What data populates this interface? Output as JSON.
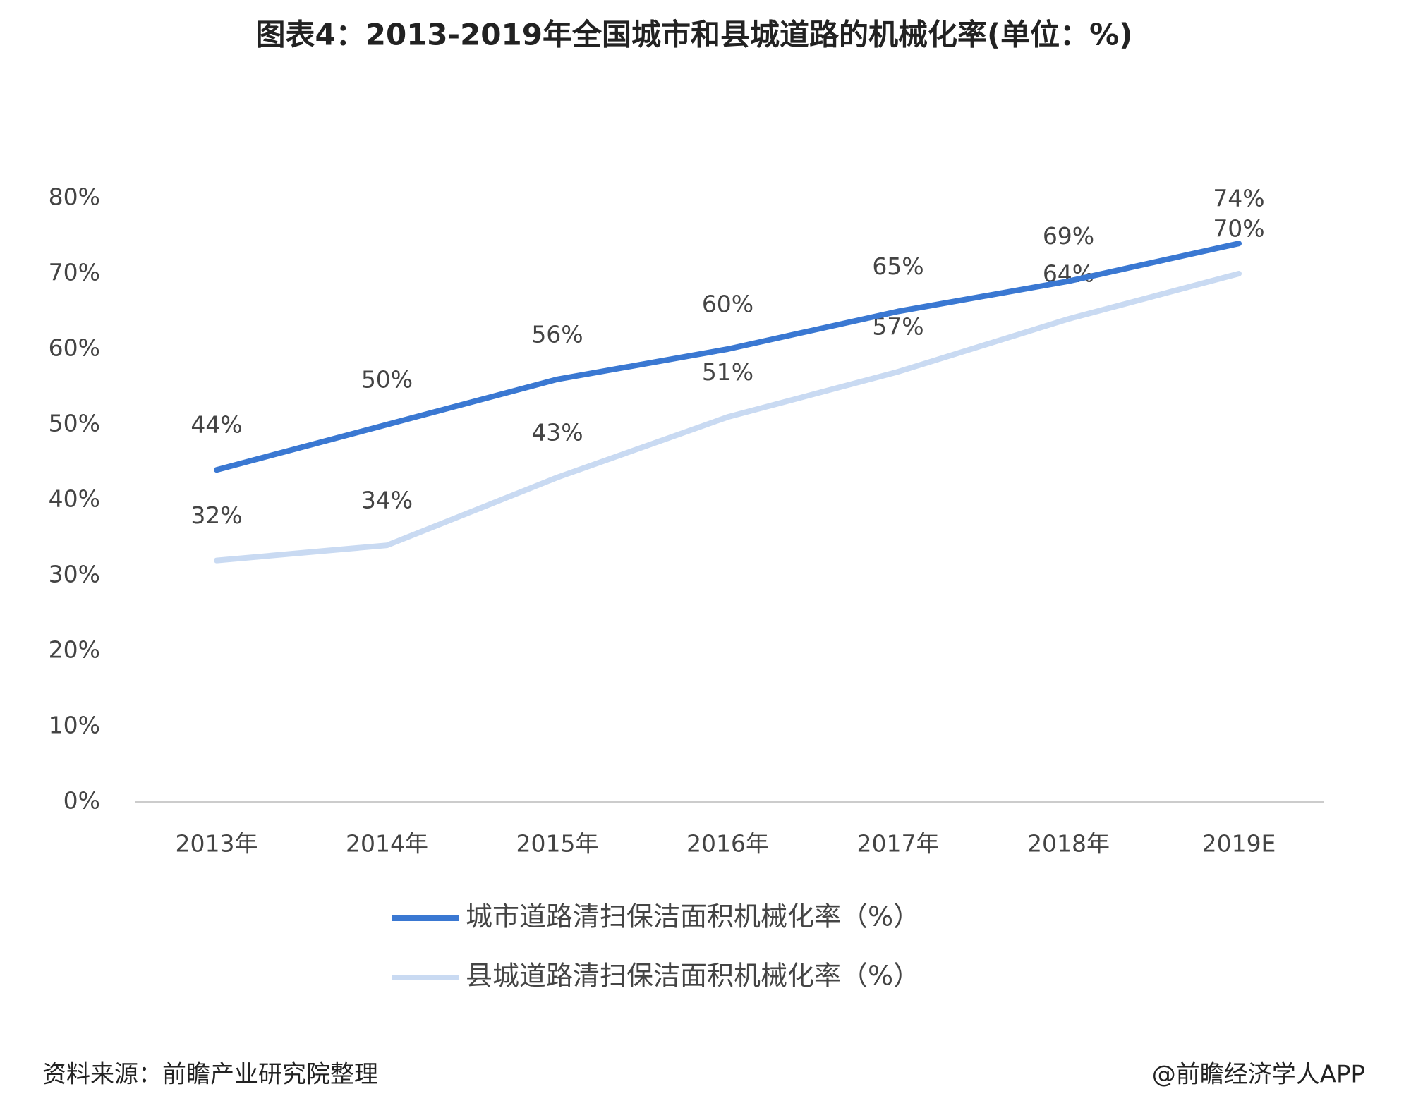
{
  "chart_data": {
    "type": "line",
    "title": "图表4：2013-2019年全国城市和县城道路的机械化率(单位：%)",
    "categories": [
      "2013年",
      "2014年",
      "2015年",
      "2016年",
      "2017年",
      "2018年",
      "2019E"
    ],
    "series": [
      {
        "name": "城市道路清扫保洁面积机械化率（%）",
        "color": "#3a78d2",
        "values": [
          44,
          50,
          56,
          60,
          65,
          69,
          74
        ],
        "value_labels": [
          "44%",
          "50%",
          "56%",
          "60%",
          "65%",
          "69%",
          "74%"
        ]
      },
      {
        "name": "县城道路清扫保洁面积机械化率（%）",
        "color": "#c9daf2",
        "values": [
          32,
          34,
          43,
          51,
          57,
          64,
          70
        ],
        "value_labels": [
          "32%",
          "34%",
          "43%",
          "51%",
          "57%",
          "64%",
          "70%"
        ]
      }
    ],
    "ylim": [
      0,
      80
    ],
    "yticks": [
      {
        "value": 0,
        "label": "0%"
      },
      {
        "value": 10,
        "label": "10%"
      },
      {
        "value": 20,
        "label": "20%"
      },
      {
        "value": 30,
        "label": "30%"
      },
      {
        "value": 40,
        "label": "40%"
      },
      {
        "value": 50,
        "label": "50%"
      },
      {
        "value": 60,
        "label": "60%"
      },
      {
        "value": 70,
        "label": "70%"
      },
      {
        "value": 80,
        "label": "80%"
      }
    ],
    "grid": false,
    "source": "资料来源：前瞻产业研究院整理",
    "credit": "@前瞻经济学人APP"
  }
}
